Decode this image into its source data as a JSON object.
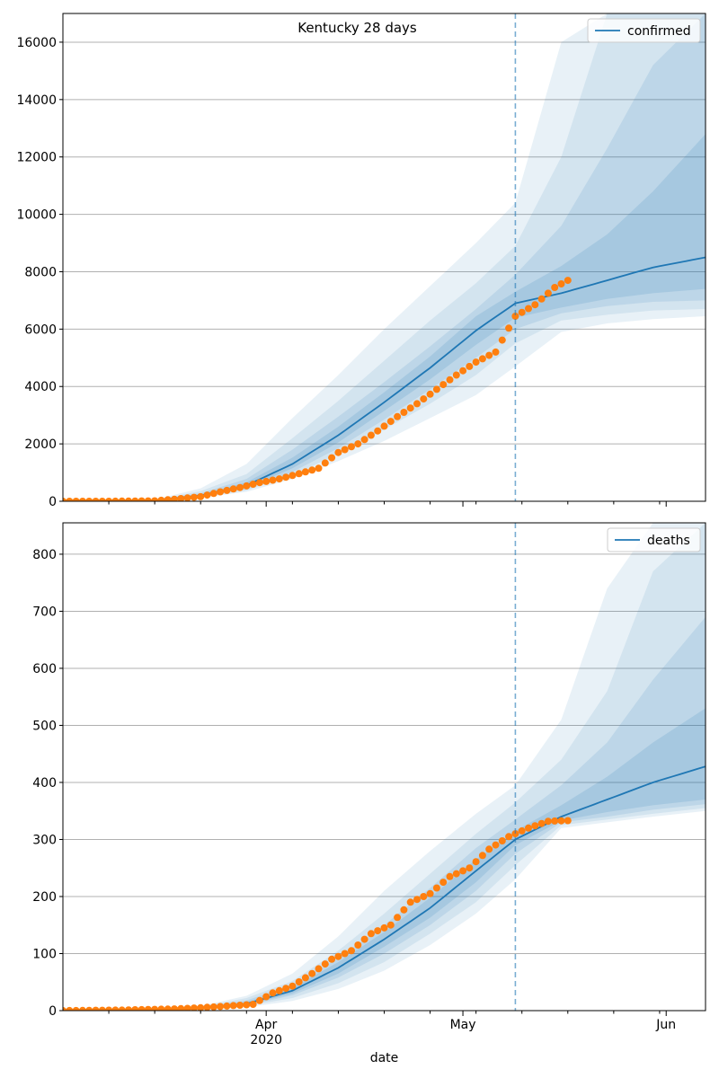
{
  "chart_data": [
    {
      "type": "line",
      "title": "Kentucky 28 days",
      "xlabel": "",
      "ylabel": "",
      "ylim": [
        0,
        17000
      ],
      "xlim": [
        "2020-03-01",
        "2020-06-07"
      ],
      "yticks": [
        0,
        2000,
        4000,
        6000,
        8000,
        10000,
        12000,
        14000,
        16000
      ],
      "grid": "horizontal",
      "legend": "top-right",
      "forecast_start": "2020-05-09",
      "series": [
        {
          "name": "confirmed",
          "kind": "median",
          "color": "#1f77b4",
          "x": [
            "2020-03-01",
            "2020-03-15",
            "2020-03-22",
            "2020-03-29",
            "2020-04-05",
            "2020-04-12",
            "2020-04-19",
            "2020-04-26",
            "2020-05-03",
            "2020-05-09",
            "2020-05-16",
            "2020-05-23",
            "2020-05-30",
            "2020-06-07"
          ],
          "values": [
            0,
            30,
            200,
            550,
            1300,
            2300,
            3450,
            4650,
            5950,
            6900,
            7250,
            7700,
            8150,
            8500
          ]
        },
        {
          "name": "",
          "kind": "observed",
          "color": "#ff7f0e",
          "x": [
            "2020-03-01",
            "2020-03-08",
            "2020-03-15",
            "2020-03-18",
            "2020-03-22",
            "2020-03-25",
            "2020-03-28",
            "2020-03-31",
            "2020-04-03",
            "2020-04-06",
            "2020-04-09",
            "2020-04-12",
            "2020-04-15",
            "2020-04-18",
            "2020-04-21",
            "2020-04-24",
            "2020-04-27",
            "2020-04-30",
            "2020-05-03",
            "2020-05-06",
            "2020-05-09",
            "2020-05-12",
            "2020-05-15",
            "2020-05-17"
          ],
          "values": [
            1,
            1,
            15,
            70,
            160,
            330,
            480,
            650,
            780,
            960,
            1150,
            1700,
            2000,
            2450,
            2950,
            3400,
            3900,
            4400,
            4850,
            5200,
            6450,
            6850,
            7450,
            7700
          ]
        }
      ],
      "bands": [
        {
          "lower": [
            0,
            20,
            120,
            330,
            780,
            1400,
            2100,
            2900,
            3700,
            4700,
            5900,
            6200,
            6350,
            6450
          ],
          "upper": [
            0,
            60,
            450,
            1300,
            2900,
            4400,
            6000,
            7500,
            9000,
            10400,
            16000,
            17000,
            17000,
            17000
          ]
        },
        {
          "lower": [
            0,
            22,
            140,
            380,
            900,
            1650,
            2500,
            3400,
            4400,
            5500,
            6300,
            6500,
            6650,
            6700
          ],
          "upper": [
            0,
            50,
            350,
            950,
            2200,
            3500,
            4900,
            6300,
            7600,
            8900,
            12000,
            17000,
            17000,
            17000
          ]
        },
        {
          "lower": [
            0,
            25,
            160,
            430,
            1020,
            1850,
            2850,
            3900,
            5000,
            6000,
            6550,
            6800,
            6950,
            7000
          ],
          "upper": [
            0,
            45,
            280,
            780,
            1800,
            2950,
            4150,
            5400,
            6700,
            7900,
            9600,
            12300,
            15200,
            17000
          ]
        },
        {
          "lower": [
            0,
            27,
            180,
            480,
            1150,
            2050,
            3150,
            4250,
            5450,
            6400,
            6750,
            7050,
            7250,
            7400
          ],
          "upper": [
            0,
            38,
            240,
            660,
            1520,
            2600,
            3800,
            5050,
            6450,
            7300,
            8200,
            9300,
            10800,
            12800
          ]
        }
      ]
    },
    {
      "type": "line",
      "title": "",
      "xlabel": "date",
      "ylabel": "",
      "ylim": [
        0,
        855
      ],
      "xlim": [
        "2020-03-01",
        "2020-06-07"
      ],
      "yticks": [
        0,
        100,
        200,
        300,
        400,
        500,
        600,
        700,
        800
      ],
      "xticks": [
        {
          "date": "2020-04-01",
          "label": "Apr",
          "sublabel": "2020"
        },
        {
          "date": "2020-05-01",
          "label": "May",
          "sublabel": ""
        },
        {
          "date": "2020-06-01",
          "label": "Jun",
          "sublabel": ""
        }
      ],
      "grid": "horizontal",
      "legend": "top-right",
      "forecast_start": "2020-05-09",
      "series": [
        {
          "name": "deaths",
          "kind": "median",
          "color": "#1f77b4",
          "x": [
            "2020-03-01",
            "2020-03-15",
            "2020-03-22",
            "2020-03-29",
            "2020-04-05",
            "2020-04-12",
            "2020-04-19",
            "2020-04-26",
            "2020-05-03",
            "2020-05-09",
            "2020-05-16",
            "2020-05-23",
            "2020-05-30",
            "2020-06-07"
          ],
          "values": [
            0,
            1,
            4,
            12,
            35,
            75,
            125,
            180,
            245,
            300,
            340,
            370,
            400,
            428
          ]
        },
        {
          "name": "",
          "kind": "observed",
          "color": "#ff7f0e",
          "x": [
            "2020-03-01",
            "2020-03-10",
            "2020-03-18",
            "2020-03-22",
            "2020-03-26",
            "2020-03-30",
            "2020-04-02",
            "2020-04-05",
            "2020-04-08",
            "2020-04-11",
            "2020-04-14",
            "2020-04-17",
            "2020-04-20",
            "2020-04-23",
            "2020-04-26",
            "2020-04-29",
            "2020-05-02",
            "2020-05-05",
            "2020-05-08",
            "2020-05-11",
            "2020-05-14",
            "2020-05-17"
          ],
          "values": [
            0,
            1,
            3,
            5,
            8,
            11,
            31,
            43,
            65,
            90,
            105,
            135,
            150,
            190,
            205,
            235,
            250,
            283,
            305,
            320,
            332,
            333
          ]
        }
      ],
      "bands": [
        {
          "lower": [
            0,
            0.5,
            2,
            6,
            17,
            38,
            70,
            115,
            170,
            230,
            320,
            330,
            340,
            350
          ],
          "upper": [
            0,
            2,
            8,
            26,
            65,
            130,
            210,
            280,
            345,
            395,
            510,
            740,
            855,
            855
          ]
        },
        {
          "lower": [
            0,
            0.6,
            2.5,
            8,
            22,
            48,
            85,
            135,
            190,
            255,
            325,
            335,
            345,
            355
          ],
          "upper": [
            0,
            1.7,
            7,
            22,
            52,
            105,
            170,
            240,
            310,
            365,
            440,
            560,
            770,
            855
          ]
        },
        {
          "lower": [
            0,
            0.7,
            3,
            9,
            27,
            58,
            100,
            150,
            210,
            275,
            330,
            340,
            352,
            362
          ],
          "upper": [
            0,
            1.5,
            6,
            18,
            45,
            92,
            150,
            215,
            285,
            335,
            395,
            470,
            580,
            690
          ]
        },
        {
          "lower": [
            0,
            0.8,
            3.5,
            10,
            30,
            65,
            112,
            163,
            225,
            290,
            333,
            348,
            360,
            370
          ],
          "upper": [
            0,
            1.3,
            5,
            15,
            40,
            85,
            138,
            198,
            265,
            315,
            360,
            410,
            470,
            530
          ]
        }
      ]
    }
  ]
}
